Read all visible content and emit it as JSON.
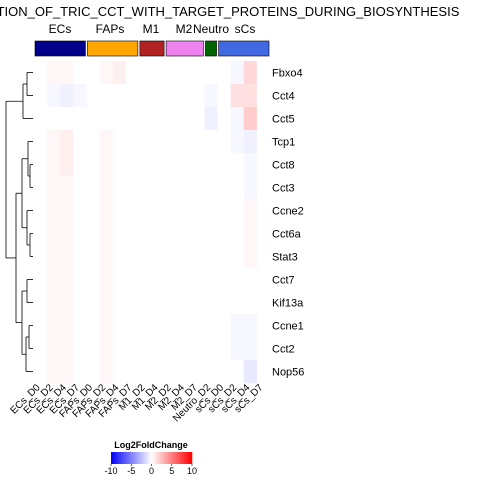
{
  "chart_data": {
    "type": "heatmap",
    "title": "TION_OF_TRIC_CCT_WITH_TARGET_PROTEINS_DURING_BIOSYNTHESIS",
    "groups": [
      {
        "label": "ECs",
        "color": "#00008b"
      },
      {
        "label": "FAPs",
        "color": "#ffa500"
      },
      {
        "label": "M1",
        "color": "#b22222"
      },
      {
        "label": "M2",
        "color": "#ee82ee"
      },
      {
        "label": "Neutro",
        "color": "#006400"
      },
      {
        "label": "sCs",
        "color": "#4169e1"
      }
    ],
    "columns": [
      "ECs_D0",
      "ECs_D2",
      "ECs_D4",
      "ECs_D7",
      "FAPs_D0",
      "FAPs_D2",
      "FAPs_D4",
      "FAPs_D7",
      "M1_D2",
      "M1_D4",
      "M2_D2",
      "M2_D4",
      "M2_D7",
      "Neutro_D2",
      "sCs_D0",
      "sCs_D2",
      "sCs_D4",
      "sCs_D7"
    ],
    "rows": [
      "Fbxo4",
      "Cct4",
      "Cct5",
      "Tcp1",
      "Cct8",
      "Cct3",
      "Ccne2",
      "Cct6a",
      "Stat3",
      "Cct7",
      "Kif13a",
      "Ccne1",
      "Cct2",
      "Nop56"
    ],
    "values": [
      [
        0,
        0.3,
        0.3,
        0,
        0,
        0.3,
        0.6,
        0,
        0,
        0,
        0,
        0,
        0,
        0,
        0,
        -0.3,
        1.5,
        0
      ],
      [
        0,
        -0.3,
        -0.6,
        -0.3,
        0,
        0,
        0,
        0,
        0,
        0,
        0,
        0,
        0,
        -0.3,
        0,
        1.2,
        1.2,
        0
      ],
      [
        0,
        0,
        0,
        0,
        0,
        0,
        0,
        0,
        0,
        0,
        0,
        0,
        0,
        -0.6,
        0,
        -0.3,
        2.0,
        0
      ],
      [
        0,
        0.3,
        0.6,
        0,
        0,
        0.3,
        0,
        0,
        0,
        0,
        0,
        0,
        0,
        0,
        0,
        -0.3,
        -0.6,
        0
      ],
      [
        0,
        0.3,
        0.6,
        0,
        0,
        0.3,
        0,
        0,
        0,
        0,
        0,
        0,
        0,
        0,
        0,
        0,
        -0.3,
        0
      ],
      [
        0,
        0.3,
        0.3,
        0,
        0,
        0.3,
        0,
        0,
        0,
        0,
        0,
        0,
        0,
        0,
        0,
        0,
        -0.3,
        0
      ],
      [
        0,
        0.3,
        0.3,
        0,
        0,
        0.3,
        0,
        0,
        0,
        0,
        0,
        0,
        0,
        0,
        0,
        0,
        0.3,
        0
      ],
      [
        0,
        0.3,
        0.3,
        0,
        0,
        0.3,
        0,
        0,
        0,
        0,
        0,
        0,
        0,
        0,
        0,
        0,
        0.3,
        0
      ],
      [
        0,
        0.3,
        0.3,
        0,
        0,
        0.3,
        0,
        0,
        0,
        0,
        0,
        0,
        0,
        0,
        0,
        0,
        0.3,
        0
      ],
      [
        0,
        0.3,
        0.3,
        0,
        0,
        0.3,
        0,
        0,
        0,
        0,
        0,
        0,
        0,
        0,
        0,
        0,
        0,
        0
      ],
      [
        0,
        0.3,
        0.3,
        0,
        0,
        0.3,
        0,
        0,
        0,
        0,
        0,
        0,
        0,
        0,
        0,
        0,
        0,
        0
      ],
      [
        0,
        0.3,
        0.3,
        0,
        0,
        0.3,
        0,
        0,
        0,
        0,
        0,
        0,
        0,
        0,
        0,
        -0.3,
        -0.3,
        0
      ],
      [
        0,
        0.3,
        0.3,
        0,
        0,
        0.3,
        0,
        0,
        0,
        0,
        0,
        0,
        0,
        0,
        0,
        -0.3,
        -0.3,
        0
      ],
      [
        0,
        0.3,
        0.3,
        0,
        0,
        0.3,
        0,
        0,
        0,
        0,
        0,
        0,
        0,
        0,
        0,
        0,
        -0.9,
        0
      ]
    ],
    "legend": {
      "title": "Log2FoldChange",
      "ticks": [
        "-10",
        "-5",
        "0",
        "5",
        "10"
      ],
      "range": [
        -10,
        10
      ]
    },
    "colors": {
      "low": "#0000ff",
      "mid": "#ffffff",
      "high": "#ff0000"
    }
  }
}
